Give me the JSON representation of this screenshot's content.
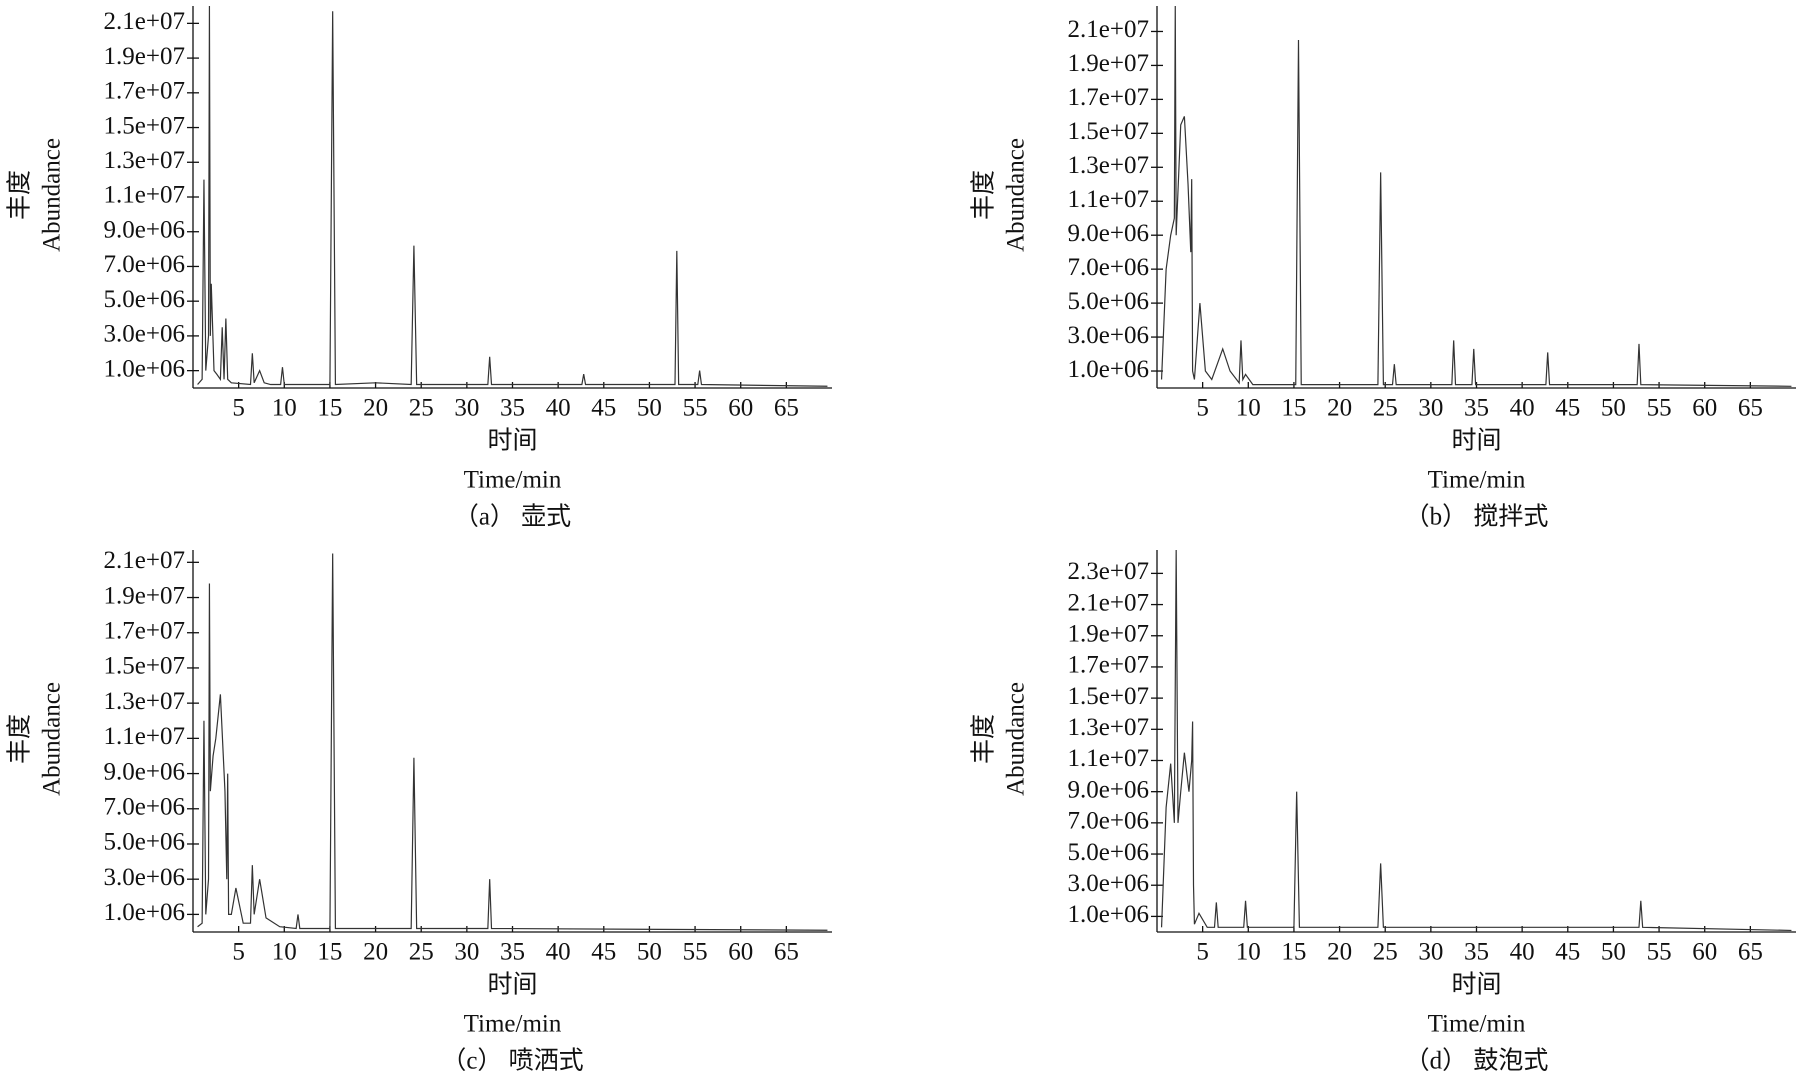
{
  "chart_data": [
    {
      "type": "line",
      "caption": "（a） 壶式",
      "x_label_cn": "时间",
      "x_label": "Time/min",
      "y_label_cn": "丰度",
      "y_label": "Abundance",
      "color": "#333333",
      "xlim": [
        0,
        70
      ],
      "ylim": [
        0,
        22000000.0
      ],
      "xticks": [
        5,
        10,
        15,
        20,
        25,
        30,
        35,
        40,
        45,
        50,
        55,
        60,
        65
      ],
      "yticks": [
        {
          "value": 1000000.0,
          "label": "1.0e+06"
        },
        {
          "value": 3000000.0,
          "label": "3.0e+06"
        },
        {
          "value": 5000000.0,
          "label": "5.0e+06"
        },
        {
          "value": 7000000.0,
          "label": "7.0e+06"
        },
        {
          "value": 9000000.0,
          "label": "9.0e+06"
        },
        {
          "value": 11000000.0,
          "label": "1.1e+07"
        },
        {
          "value": 13000000.0,
          "label": "1.3e+07"
        },
        {
          "value": 15000000.0,
          "label": "1.5e+07"
        },
        {
          "value": 17000000.0,
          "label": "1.7e+07"
        },
        {
          "value": 19000000.0,
          "label": "1.9e+07"
        },
        {
          "value": 21000000.0,
          "label": "2.1e+07"
        }
      ],
      "x": [
        0.5,
        1.0,
        1.2,
        1.4,
        1.7,
        1.8,
        1.9,
        2.0,
        2.3,
        2.6,
        3.0,
        3.2,
        3.4,
        3.6,
        3.8,
        4.2,
        6.3,
        6.5,
        6.7,
        7.3,
        7.8,
        8.5,
        9.6,
        9.8,
        10.0,
        15.0,
        15.3,
        15.6,
        20,
        23.9,
        24.2,
        24.5,
        32.3,
        32.5,
        32.7,
        42.6,
        42.8,
        43.0,
        52.8,
        53.0,
        53.2,
        55.3,
        55.5,
        55.7,
        69.5
      ],
      "values": [
        200000.0,
        500000.0,
        12000000.0,
        1000000.0,
        3000000.0,
        22000000.0,
        3000000.0,
        6000000.0,
        1000000.0,
        800000.0,
        500000.0,
        3500000.0,
        500000.0,
        4000000.0,
        500000.0,
        300000.0,
        200000.0,
        2000000.0,
        300000.0,
        1000000.0,
        300000.0,
        200000.0,
        200000.0,
        1200000.0,
        200000.0,
        200000.0,
        21700000.0,
        200000.0,
        300000.0,
        200000.0,
        8200000.0,
        200000.0,
        200000.0,
        1800000.0,
        200000.0,
        200000.0,
        800000.0,
        200000.0,
        200000.0,
        7900000.0,
        200000.0,
        200000.0,
        1000000.0,
        200000.0,
        100000.0
      ]
    },
    {
      "type": "line",
      "caption": "（b） 搅拌式",
      "x_label_cn": "时间",
      "x_label": "Time/min",
      "y_label_cn": "丰度",
      "y_label": "Abundance",
      "color": "#333333",
      "xlim": [
        0,
        70
      ],
      "ylim": [
        0,
        22500000.0
      ],
      "xticks": [
        5,
        10,
        15,
        20,
        25,
        30,
        35,
        40,
        45,
        50,
        55,
        60,
        65
      ],
      "yticks": [
        {
          "value": 1000000.0,
          "label": "1.0e+06"
        },
        {
          "value": 3000000.0,
          "label": "3.0e+06"
        },
        {
          "value": 5000000.0,
          "label": "5.0e+06"
        },
        {
          "value": 7000000.0,
          "label": "7.0e+06"
        },
        {
          "value": 9000000.0,
          "label": "9.0e+06"
        },
        {
          "value": 11000000.0,
          "label": "1.1e+07"
        },
        {
          "value": 13000000.0,
          "label": "1.3e+07"
        },
        {
          "value": 15000000.0,
          "label": "1.5e+07"
        },
        {
          "value": 17000000.0,
          "label": "1.7e+07"
        },
        {
          "value": 19000000.0,
          "label": "1.9e+07"
        },
        {
          "value": 21000000.0,
          "label": "2.1e+07"
        }
      ],
      "x": [
        0.5,
        1.0,
        1.5,
        1.9,
        2.0,
        2.1,
        2.6,
        3.0,
        3.4,
        3.7,
        3.8,
        3.9,
        4.1,
        4.7,
        5.3,
        6.0,
        7.2,
        8.0,
        9.0,
        9.2,
        9.4,
        9.7,
        10.5,
        15.2,
        15.5,
        15.8,
        24.2,
        24.5,
        24.8,
        25.8,
        26.0,
        26.2,
        32.3,
        32.5,
        32.7,
        34.5,
        34.7,
        34.9,
        42.6,
        42.8,
        43.0,
        52.6,
        52.8,
        53.0,
        69.5
      ],
      "values": [
        500000.0,
        7000000.0,
        9000000.0,
        10000000.0,
        22500000.0,
        9000000.0,
        15500000.0,
        16000000.0,
        12000000.0,
        8000000.0,
        12300000.0,
        1000000.0,
        500000.0,
        5000000.0,
        1000000.0,
        500000.0,
        2300000.0,
        1000000.0,
        300000.0,
        2800000.0,
        500000.0,
        800000.0,
        200000.0,
        200000.0,
        20500000.0,
        200000.0,
        200000.0,
        12700000.0,
        200000.0,
        200000.0,
        1400000.0,
        200000.0,
        200000.0,
        2800000.0,
        200000.0,
        200000.0,
        2300000.0,
        200000.0,
        200000.0,
        2100000.0,
        200000.0,
        200000.0,
        2600000.0,
        200000.0,
        100000.0
      ]
    },
    {
      "type": "line",
      "caption": "（c） 喷洒式",
      "x_label_cn": "时间",
      "x_label": "Time/min",
      "y_label_cn": "丰度",
      "y_label": "Abundance",
      "color": "#333333",
      "xlim": [
        0,
        70
      ],
      "ylim": [
        0,
        21700000.0
      ],
      "xticks": [
        5,
        10,
        15,
        20,
        25,
        30,
        35,
        40,
        45,
        50,
        55,
        60,
        65
      ],
      "yticks": [
        {
          "value": 1000000.0,
          "label": "1.0e+06"
        },
        {
          "value": 3000000.0,
          "label": "3.0e+06"
        },
        {
          "value": 5000000.0,
          "label": "5.0e+06"
        },
        {
          "value": 7000000.0,
          "label": "7.0e+06"
        },
        {
          "value": 9000000.0,
          "label": "9.0e+06"
        },
        {
          "value": 11000000.0,
          "label": "1.1e+07"
        },
        {
          "value": 13000000.0,
          "label": "1.3e+07"
        },
        {
          "value": 15000000.0,
          "label": "1.5e+07"
        },
        {
          "value": 17000000.0,
          "label": "1.7e+07"
        },
        {
          "value": 19000000.0,
          "label": "1.9e+07"
        },
        {
          "value": 21000000.0,
          "label": "2.1e+07"
        }
      ],
      "x": [
        0.5,
        1.0,
        1.2,
        1.4,
        1.7,
        1.8,
        1.9,
        2.2,
        2.5,
        3.0,
        3.5,
        3.7,
        3.8,
        3.9,
        4.2,
        4.7,
        5.5,
        6.3,
        6.5,
        6.7,
        7.3,
        8.0,
        9.5,
        11.3,
        11.5,
        11.7,
        15.0,
        15.3,
        15.6,
        23.9,
        24.2,
        24.5,
        32.3,
        32.5,
        32.7,
        69.5
      ],
      "values": [
        300000.0,
        500000.0,
        12000000.0,
        1000000.0,
        3000000.0,
        19800000.0,
        8000000.0,
        10000000.0,
        11000000.0,
        13500000.0,
        8000000.0,
        3000000.0,
        9000000.0,
        1000000.0,
        1000000.0,
        2500000.0,
        500000.0,
        500000.0,
        3800000.0,
        1000000.0,
        3000000.0,
        800000.0,
        300000.0,
        200000.0,
        1000000.0,
        200000.0,
        200000.0,
        21500000.0,
        200000.0,
        200000.0,
        9900000.0,
        200000.0,
        200000.0,
        3000000.0,
        200000.0,
        100000.0
      ]
    },
    {
      "type": "line",
      "caption": "（d） 鼓泡式",
      "x_label_cn": "时间",
      "x_label": "Time/min",
      "y_label_cn": "丰度",
      "y_label": "Abundance",
      "color": "#333333",
      "xlim": [
        0,
        70
      ],
      "ylim": [
        0,
        24500000.0
      ],
      "xticks": [
        5,
        10,
        15,
        20,
        25,
        30,
        35,
        40,
        45,
        50,
        55,
        60,
        65
      ],
      "yticks": [
        {
          "value": 1000000.0,
          "label": "1.0e+06"
        },
        {
          "value": 3000000.0,
          "label": "3.0e+06"
        },
        {
          "value": 5000000.0,
          "label": "5.0e+06"
        },
        {
          "value": 7000000.0,
          "label": "7.0e+06"
        },
        {
          "value": 9000000.0,
          "label": "9.0e+06"
        },
        {
          "value": 11000000.0,
          "label": "1.1e+07"
        },
        {
          "value": 13000000.0,
          "label": "1.3e+07"
        },
        {
          "value": 15000000.0,
          "label": "1.5e+07"
        },
        {
          "value": 17000000.0,
          "label": "1.7e+07"
        },
        {
          "value": 19000000.0,
          "label": "1.9e+07"
        },
        {
          "value": 21000000.0,
          "label": "2.1e+07"
        },
        {
          "value": 23000000.0,
          "label": "2.3e+07"
        }
      ],
      "x": [
        0.5,
        1.0,
        1.5,
        1.9,
        2.1,
        2.3,
        2.6,
        3.0,
        3.5,
        3.8,
        3.9,
        4.0,
        4.1,
        4.6,
        5.5,
        6.3,
        6.5,
        6.7,
        9.5,
        9.7,
        9.9,
        15.0,
        15.3,
        15.6,
        24.2,
        24.5,
        24.8,
        52.8,
        53.0,
        53.2,
        69.5
      ],
      "values": [
        300000.0,
        8000000.0,
        10800000.0,
        7000000.0,
        24500000.0,
        7000000.0,
        9000000.0,
        11500000.0,
        9000000.0,
        11000000.0,
        13500000.0,
        3000000.0,
        500000.0,
        1200000.0,
        300000.0,
        300000.0,
        1900000.0,
        300000.0,
        300000.0,
        2000000.0,
        300000.0,
        300000.0,
        9000000.0,
        300000.0,
        300000.0,
        4400000.0,
        300000.0,
        300000.0,
        2000000.0,
        300000.0,
        100000.0
      ]
    }
  ]
}
